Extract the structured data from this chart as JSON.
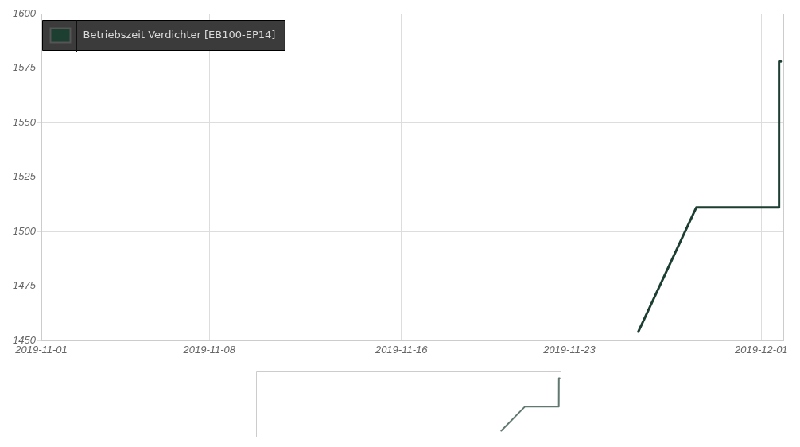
{
  "chart_data": {
    "type": "line",
    "x": [
      "2019-11-25T21:00",
      "2019-11-28T07:00",
      "2019-12-01T17:30",
      "2019-12-01T17:45",
      "2019-12-01T19:30"
    ],
    "series": [
      {
        "name": "Betriebszeit Verdichter [EB100-EP14]",
        "color": "#1c3f32",
        "values": [
          1454,
          1511,
          1511,
          1578,
          1578
        ]
      }
    ],
    "xlim": [
      "2019-11-01",
      "2019-12-01T22:00"
    ],
    "xticks": [
      "2019-11-01",
      "2019-11-08",
      "2019-11-16",
      "2019-11-23",
      "2019-12-01"
    ],
    "ylim": [
      1450,
      1600
    ],
    "yticks": [
      1450,
      1475,
      1500,
      1525,
      1550,
      1575,
      1600
    ],
    "grid": true,
    "legend": "top left",
    "marker": "none"
  }
}
